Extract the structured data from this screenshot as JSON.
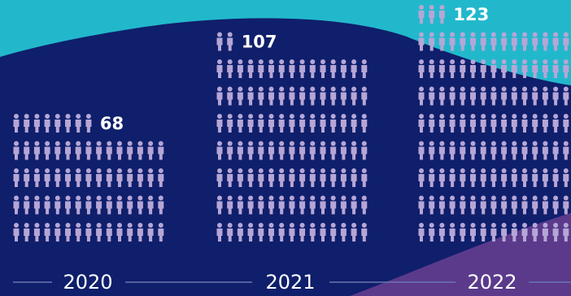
{
  "chart_data": {
    "type": "pictogram",
    "unit_per_icon": 1,
    "categories": [
      "2020",
      "2021",
      "2022"
    ],
    "values": [
      68,
      107,
      123
    ]
  },
  "colors": {
    "background": "#0f1f6b",
    "top_wave": "#22b8cc",
    "bottom_wave": "#5b3a8c",
    "icon": "#b6a6d6",
    "text": "#ffffff",
    "rule": "#6a76b0"
  },
  "icon_name": "person-icon"
}
